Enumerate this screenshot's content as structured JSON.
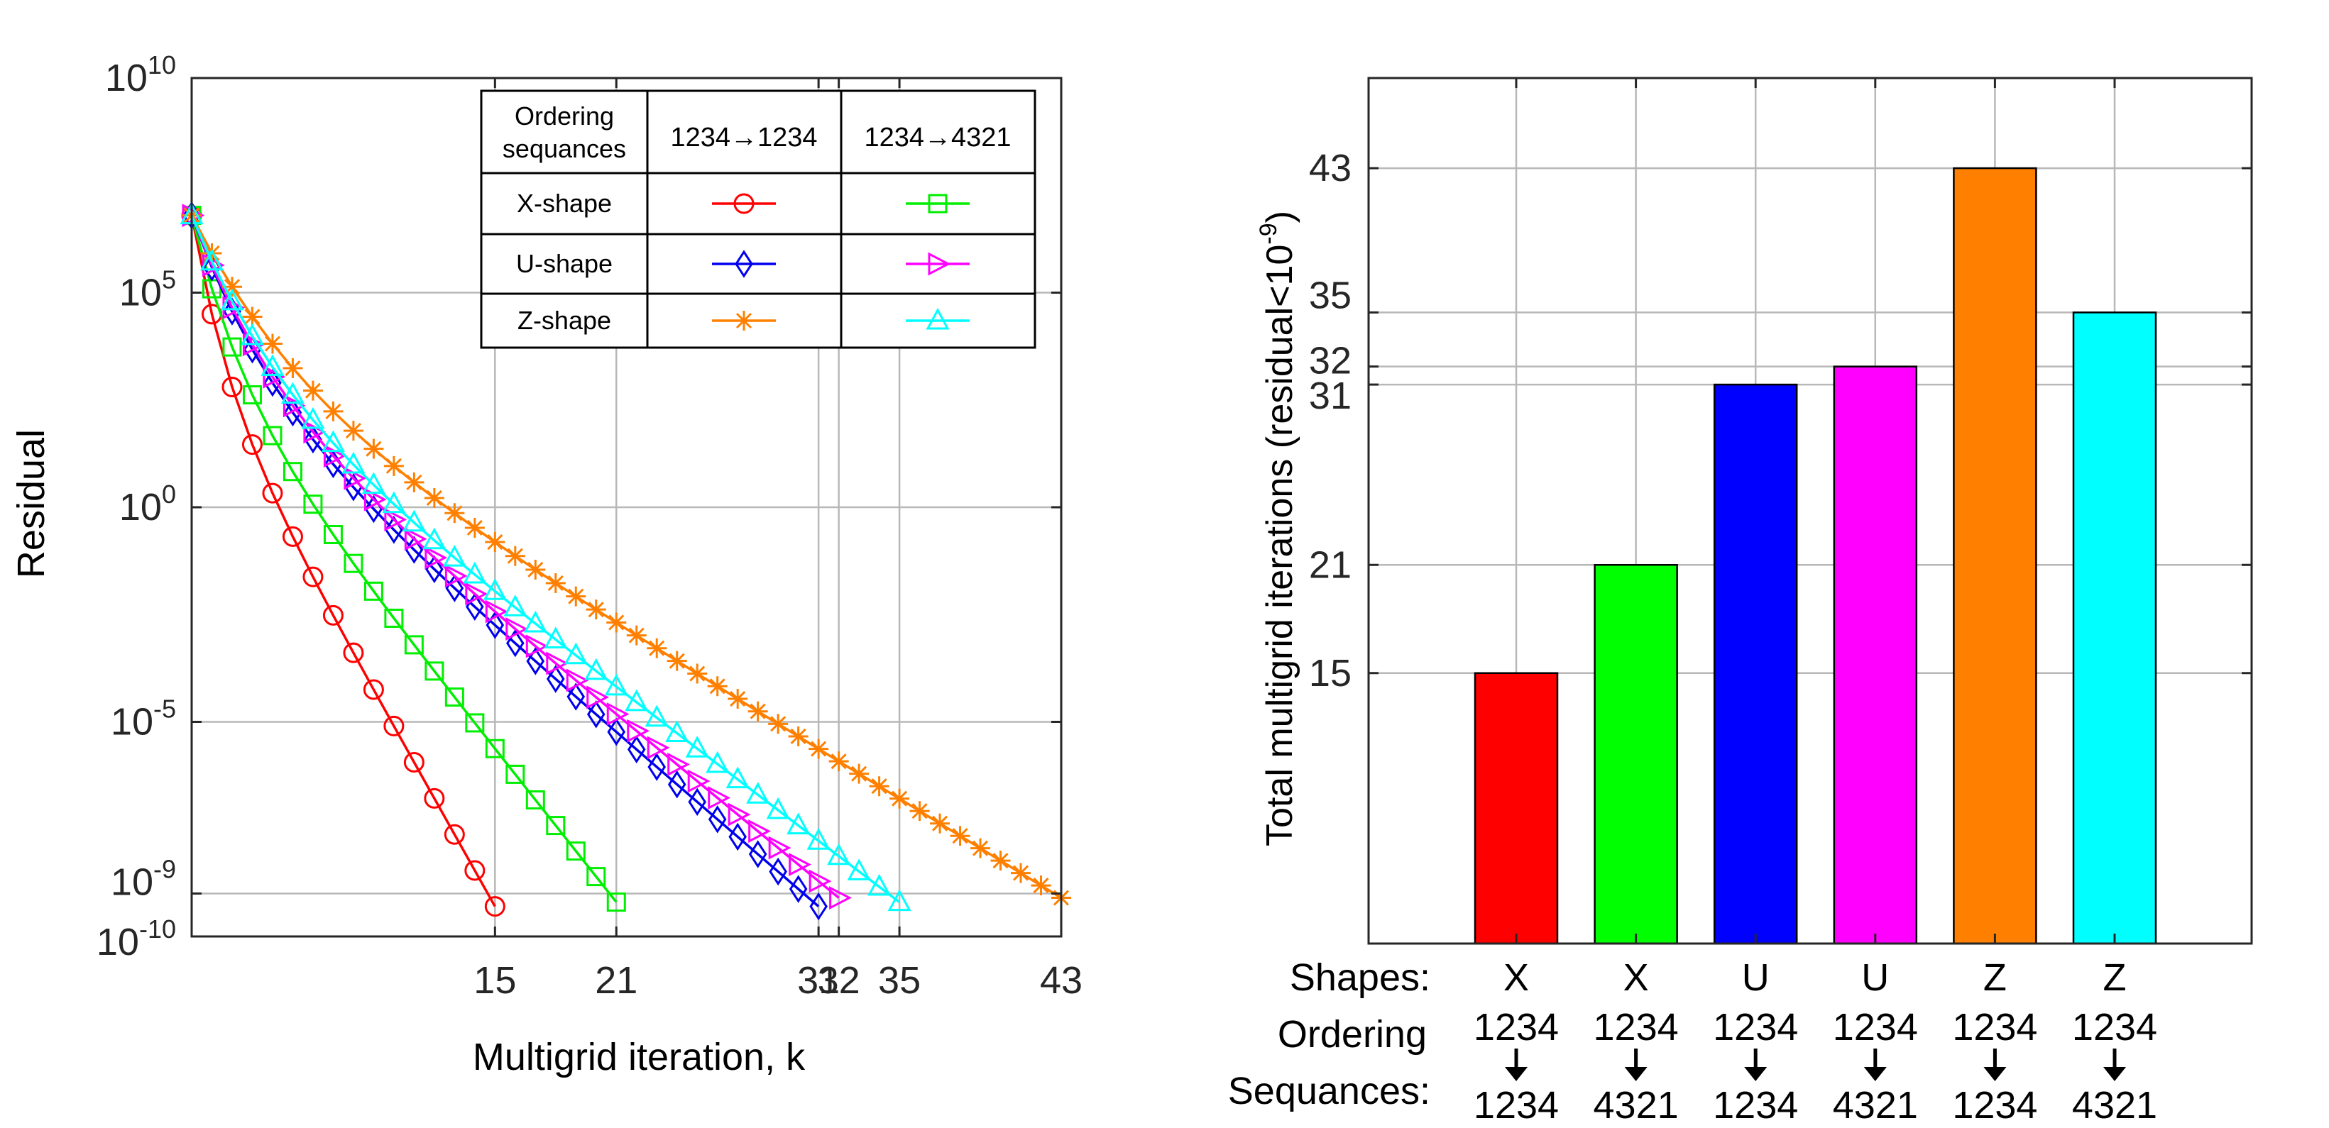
{
  "chart_data": [
    {
      "type": "line",
      "yscale": "log",
      "ylabel": "Residual",
      "xlabel": "Multigrid iteration, k",
      "xlim": [
        0,
        43
      ],
      "xticks": [
        15,
        21,
        31,
        32,
        35,
        43
      ],
      "ylim_exponents": [
        -10,
        10
      ],
      "yticks": [
        {
          "base": "10",
          "exp": "10",
          "e": 10
        },
        {
          "base": "10",
          "exp": "5",
          "e": 5
        },
        {
          "base": "10",
          "exp": "0",
          "e": 0
        },
        {
          "base": "10",
          "exp": "-5",
          "e": -5
        },
        {
          "base": "10",
          "exp": "-9",
          "e": -9
        },
        {
          "base": "10",
          "exp": "-10",
          "e": -10
        }
      ],
      "legend": {
        "header": [
          "Ordering sequances",
          "1234→1234",
          "1234→4321"
        ],
        "header_line1": "Ordering",
        "header_line2": "sequances",
        "col1": "1234→1234",
        "col2": "1234→4321",
        "rows": [
          "X-shape",
          "U-shape",
          "Z-shape"
        ]
      },
      "series": [
        {
          "name": "X-shape 1234→1234",
          "color": "#ff0000",
          "marker": "circle",
          "iterations": 15,
          "start_log10": 6.8,
          "end_log10": -9.3
        },
        {
          "name": "X-shape 1234→4321",
          "color": "#00ee00",
          "marker": "square",
          "iterations": 21,
          "start_log10": 6.8,
          "end_log10": -9.2
        },
        {
          "name": "U-shape 1234→1234",
          "color": "#0000ee",
          "marker": "diamond",
          "iterations": 31,
          "start_log10": 6.8,
          "end_log10": -9.3
        },
        {
          "name": "U-shape 1234→4321",
          "color": "#ff00ff",
          "marker": "triangle-right",
          "iterations": 32,
          "start_log10": 6.8,
          "end_log10": -9.1
        },
        {
          "name": "Z-shape 1234→1234",
          "color": "#ff8000",
          "marker": "asterisk",
          "iterations": 43,
          "start_log10": 6.8,
          "end_log10": -9.1
        },
        {
          "name": "Z-shape 1234→4321",
          "color": "#00ffff",
          "marker": "triangle-up",
          "iterations": 35,
          "start_log10": 6.8,
          "end_log10": -9.2
        }
      ]
    },
    {
      "type": "bar",
      "ylabel_main": "Total multigrid iterations (residual<10",
      "ylabel_exp": "-9",
      "ylabel_close": ")",
      "ylim": [
        0,
        48
      ],
      "yticks": [
        15,
        21,
        31,
        32,
        35,
        43
      ],
      "row_labels": {
        "shapes": "Shapes:",
        "ordering": "Ordering",
        "sequances": "Sequances:"
      },
      "categories": [
        {
          "shape": "X",
          "from": "1234",
          "to": "1234",
          "value": 15,
          "color": "#ff0000"
        },
        {
          "shape": "X",
          "from": "1234",
          "to": "4321",
          "value": 21,
          "color": "#00ff00"
        },
        {
          "shape": "U",
          "from": "1234",
          "to": "1234",
          "value": 31,
          "color": "#0000ff"
        },
        {
          "shape": "U",
          "from": "1234",
          "to": "4321",
          "value": 32,
          "color": "#ff00ff"
        },
        {
          "shape": "Z",
          "from": "1234",
          "to": "1234",
          "value": 43,
          "color": "#ff8000"
        },
        {
          "shape": "Z",
          "from": "1234",
          "to": "4321",
          "value": 35,
          "color": "#00ffff"
        }
      ]
    }
  ]
}
